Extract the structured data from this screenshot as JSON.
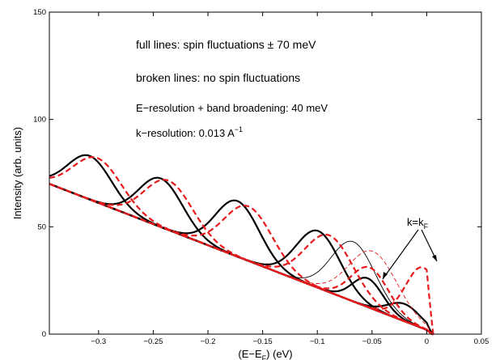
{
  "chart_data": {
    "type": "line",
    "xlabel": "(E−E",
    "xlabel_sub": "F",
    "xlabel_unit": ") (eV)",
    "ylabel": "Intensity (arb. units)",
    "xlim": [
      -0.345,
      0.05
    ],
    "ylim": [
      0,
      150
    ],
    "x_ticks": [
      -0.3,
      -0.25,
      -0.2,
      -0.15,
      -0.1,
      -0.05,
      0,
      0.05
    ],
    "x_tick_labels": [
      "−0.3",
      "−0.25",
      "−0.2",
      "−0.15",
      "−0.1",
      "−0.05",
      "0",
      "0.05"
    ],
    "y_ticks": [
      0,
      50,
      100,
      150
    ],
    "y_tick_labels": [
      "0",
      "50",
      "100",
      "150"
    ],
    "annotations": {
      "line1": "full lines: spin fluctuations ± 70 meV",
      "line2": "broken lines: no spin fluctuations",
      "line3": "E−resolution + band broadening: 40 meV",
      "line4_prefix": "k−resolution: 0.013 A",
      "line4_sup": "−1",
      "kf_prefix": "k=k",
      "kf_sub": "F"
    },
    "colors": {
      "spin": "#000000",
      "nospin": "#e8191b"
    },
    "baseline": {
      "x": [
        -0.345,
        0.0,
        0.005
      ],
      "y": [
        70,
        2,
        0
      ]
    },
    "series": [
      {
        "style": "spin",
        "width": "thick",
        "peak": -0.308,
        "height": 83,
        "sigma": 0.02
      },
      {
        "style": "spin",
        "width": "thick",
        "peak": -0.243,
        "height": 72.5,
        "sigma": 0.02
      },
      {
        "style": "spin",
        "width": "thick",
        "peak": -0.173,
        "height": 62,
        "sigma": 0.02
      },
      {
        "style": "spin",
        "width": "thick",
        "peak": -0.099,
        "height": 48,
        "sigma": 0.02
      },
      {
        "style": "spin",
        "width": "thin",
        "peak": -0.067,
        "height": 43,
        "sigma": 0.02
      },
      {
        "style": "spin",
        "width": "thick",
        "peak": -0.054,
        "height": 26,
        "sigma": 0.014
      },
      {
        "style": "spin",
        "width": "thick",
        "peak": -0.02,
        "height": 14,
        "sigma": 0.015
      },
      {
        "style": "nospin",
        "width": "thick",
        "peak": -0.301,
        "height": 82,
        "sigma": 0.022
      },
      {
        "style": "nospin",
        "width": "thick",
        "peak": -0.236,
        "height": 71.5,
        "sigma": 0.022
      },
      {
        "style": "nospin",
        "width": "thick",
        "peak": -0.163,
        "height": 59.5,
        "sigma": 0.022
      },
      {
        "style": "nospin",
        "width": "thick",
        "peak": -0.089,
        "height": 46,
        "sigma": 0.022
      },
      {
        "style": "nospin",
        "width": "thin",
        "peak": -0.049,
        "height": 38.5,
        "sigma": 0.022
      },
      {
        "style": "nospin",
        "width": "thick",
        "peak": -0.052,
        "height": 31,
        "sigma": 0.017
      },
      {
        "style": "nospin",
        "width": "thick",
        "peak": -0.003,
        "height": 31,
        "sigma": 0.016
      }
    ]
  }
}
